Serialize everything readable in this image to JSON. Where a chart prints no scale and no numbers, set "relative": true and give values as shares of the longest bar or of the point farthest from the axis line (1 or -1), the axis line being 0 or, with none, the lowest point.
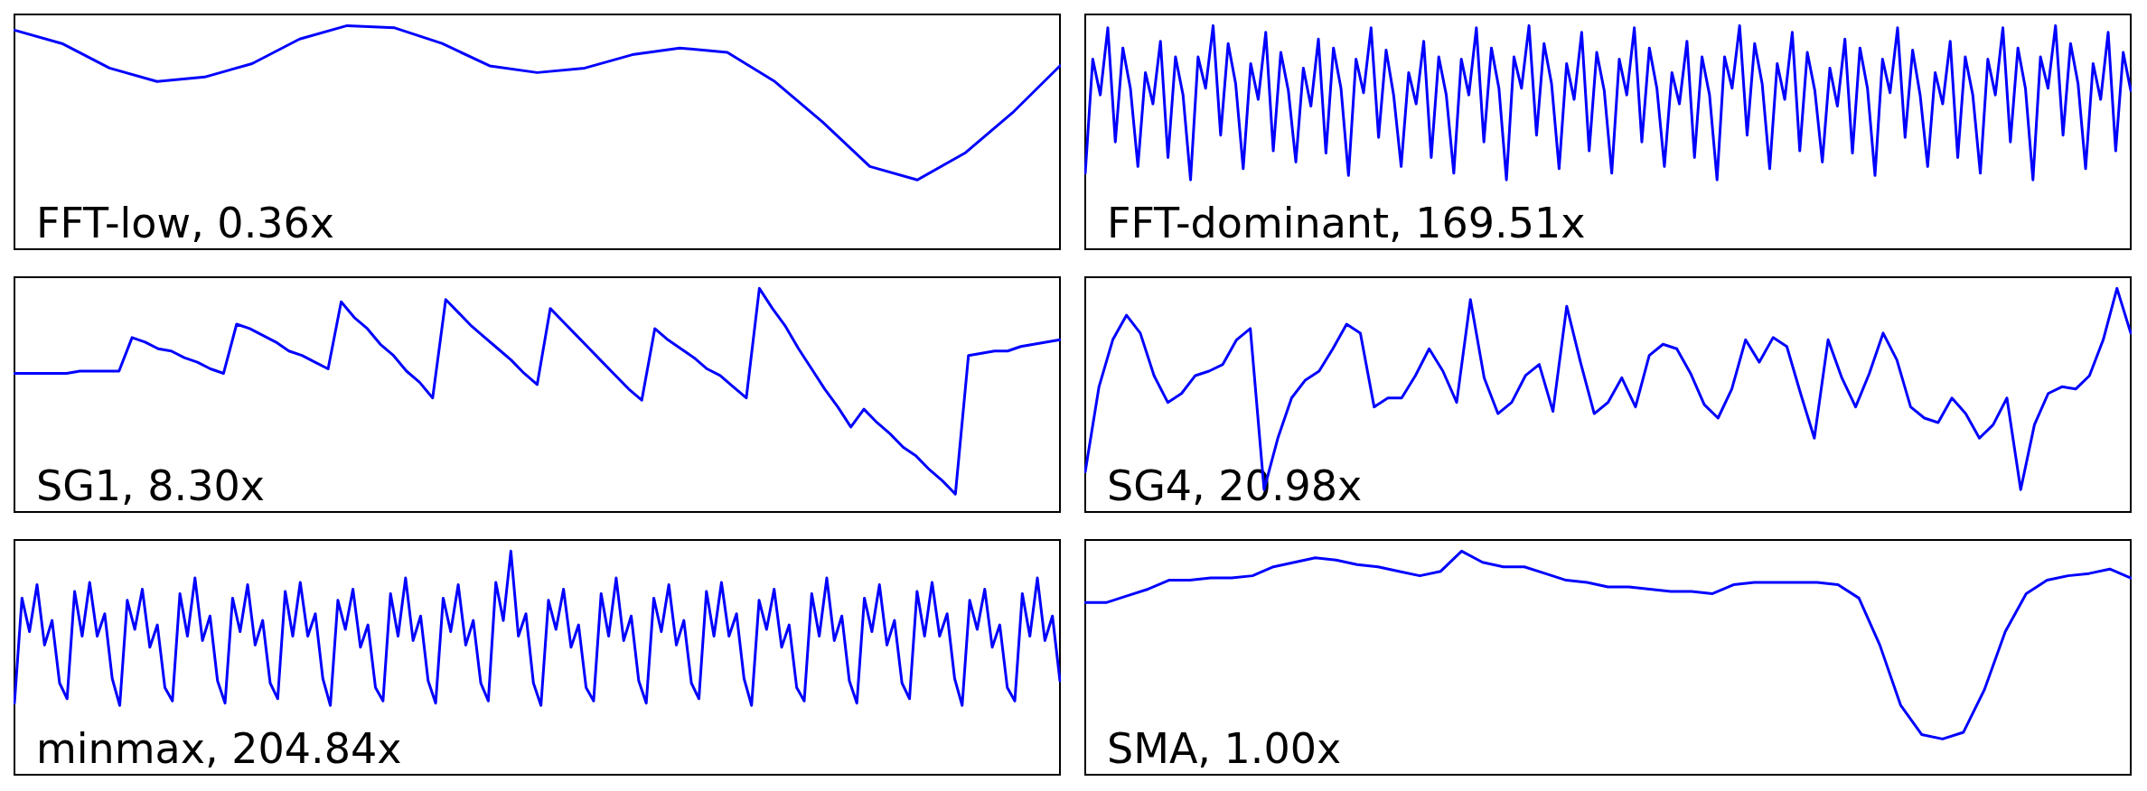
{
  "chart_data": [
    {
      "type": "line",
      "title": "FFT-low, 0.36x",
      "relative": true,
      "color": "#0000ff",
      "categories": [
        null,
        null,
        null,
        null,
        null,
        null,
        null,
        null,
        null,
        null,
        null,
        null,
        null,
        null,
        null,
        null,
        null,
        null,
        null,
        null,
        null,
        null,
        null
      ],
      "values": [
        0.98,
        0.92,
        0.81,
        0.75,
        0.77,
        0.83,
        0.94,
        1,
        0.99,
        0.92,
        0.82,
        0.79,
        0.81,
        0.87,
        0.9,
        0.88,
        0.75,
        0.57,
        0.37,
        0.31,
        0.43,
        0.61,
        0.82
      ]
    },
    {
      "type": "line",
      "title": "FFT-dominant, 169.51x",
      "relative": true,
      "color": "#0000ff",
      "categories": [
        null,
        null,
        null,
        null,
        null,
        null,
        null,
        null,
        null,
        null,
        null,
        null,
        null,
        null,
        null,
        null,
        null,
        null,
        null,
        null,
        null,
        null,
        null,
        null,
        null,
        null,
        null,
        null,
        null,
        null,
        null,
        null,
        null,
        null,
        null,
        null,
        null,
        null,
        null,
        null,
        null,
        null,
        null,
        null,
        null,
        null,
        null,
        null,
        null,
        null,
        null,
        null,
        null,
        null,
        null,
        null,
        null,
        null,
        null,
        null,
        null,
        null,
        null,
        null,
        null,
        null,
        null,
        null,
        null,
        null,
        null,
        null,
        null,
        null,
        null,
        null,
        null,
        null,
        null,
        null,
        null,
        null,
        null,
        null,
        null,
        null,
        null,
        null,
        null,
        null,
        null,
        null,
        null,
        null,
        null,
        null,
        null,
        null,
        null,
        null,
        null,
        null,
        null,
        null,
        null,
        null,
        null,
        null,
        null,
        null,
        null,
        null,
        null,
        null,
        null,
        null,
        null,
        null,
        null,
        null,
        null,
        null,
        null,
        null,
        null,
        null,
        null,
        null,
        null,
        null,
        null,
        null,
        null,
        null,
        null,
        null,
        null,
        null,
        null,
        null
      ],
      "values": [
        0.34,
        0.85,
        0.69,
        0.99,
        0.48,
        0.9,
        0.72,
        0.37,
        0.79,
        0.65,
        0.93,
        0.41,
        0.86,
        0.69,
        0.31,
        0.86,
        0.72,
        1,
        0.51,
        0.92,
        0.74,
        0.36,
        0.83,
        0.67,
        0.97,
        0.44,
        0.88,
        0.71,
        0.39,
        0.81,
        0.64,
        0.94,
        0.43,
        0.9,
        0.72,
        0.33,
        0.85,
        0.7,
        0.99,
        0.5,
        0.89,
        0.69,
        0.37,
        0.79,
        0.65,
        0.93,
        0.41,
        0.86,
        0.69,
        0.34,
        0.85,
        0.69,
        0.99,
        0.48,
        0.9,
        0.72,
        0.31,
        0.86,
        0.72,
        1,
        0.51,
        0.92,
        0.74,
        0.36,
        0.83,
        0.67,
        0.97,
        0.44,
        0.88,
        0.71,
        0.34,
        0.85,
        0.69,
        0.99,
        0.48,
        0.9,
        0.72,
        0.37,
        0.79,
        0.65,
        0.93,
        0.41,
        0.86,
        0.69,
        0.31,
        0.86,
        0.72,
        1,
        0.51,
        0.92,
        0.74,
        0.36,
        0.83,
        0.67,
        0.97,
        0.44,
        0.88,
        0.71,
        0.39,
        0.81,
        0.64,
        0.94,
        0.43,
        0.9,
        0.72,
        0.33,
        0.85,
        0.7,
        0.99,
        0.5,
        0.89,
        0.69,
        0.37,
        0.79,
        0.65,
        0.93,
        0.41,
        0.86,
        0.69,
        0.34,
        0.85,
        0.69,
        0.99,
        0.48,
        0.9,
        0.72,
        0.31,
        0.86,
        0.72,
        1,
        0.51,
        0.92,
        0.74,
        0.36,
        0.83,
        0.67,
        0.97,
        0.44,
        0.88,
        0.71
      ]
    },
    {
      "type": "line",
      "title": "SG1, 8.30x",
      "relative": true,
      "color": "#0000ff",
      "categories": [
        null,
        null,
        null,
        null,
        null,
        null,
        null,
        null,
        null,
        null,
        null,
        null,
        null,
        null,
        null,
        null,
        null,
        null,
        null,
        null,
        null,
        null,
        null,
        null,
        null,
        null,
        null,
        null,
        null,
        null,
        null,
        null,
        null,
        null,
        null,
        null,
        null,
        null,
        null,
        null,
        null,
        null,
        null,
        null,
        null,
        null,
        null,
        null,
        null,
        null,
        null,
        null,
        null,
        null,
        null,
        null,
        null,
        null,
        null,
        null,
        null,
        null,
        null,
        null,
        null,
        null,
        null,
        null,
        null,
        null,
        null,
        null,
        null,
        null,
        null,
        null,
        null,
        null,
        null,
        null,
        null
      ],
      "values": [
        0.62,
        0.62,
        0.62,
        0.62,
        0.62,
        0.63,
        0.63,
        0.63,
        0.63,
        0.78,
        0.76,
        0.73,
        0.72,
        0.69,
        0.67,
        0.64,
        0.62,
        0.84,
        0.82,
        0.79,
        0.76,
        0.72,
        0.7,
        0.67,
        0.64,
        0.94,
        0.87,
        0.82,
        0.75,
        0.7,
        0.63,
        0.58,
        0.51,
        0.95,
        0.89,
        0.83,
        0.78,
        0.73,
        0.68,
        0.62,
        0.57,
        0.91,
        0.85,
        0.79,
        0.73,
        0.67,
        0.61,
        0.55,
        0.5,
        0.82,
        0.77,
        0.73,
        0.69,
        0.64,
        0.61,
        0.56,
        0.51,
        1,
        0.91,
        0.83,
        0.73,
        0.64,
        0.55,
        0.47,
        0.38,
        0.46,
        0.4,
        0.35,
        0.29,
        0.25,
        0.19,
        0.14,
        0.08,
        0.7,
        0.71,
        0.72,
        0.72,
        0.74,
        0.75,
        0.76,
        0.77
      ]
    },
    {
      "type": "line",
      "title": "SG4, 20.98x",
      "relative": true,
      "color": "#0000ff",
      "categories": [
        null,
        null,
        null,
        null,
        null,
        null,
        null,
        null,
        null,
        null,
        null,
        null,
        null,
        null,
        null,
        null,
        null,
        null,
        null,
        null,
        null,
        null,
        null,
        null,
        null,
        null,
        null,
        null,
        null,
        null,
        null,
        null,
        null,
        null,
        null,
        null,
        null,
        null,
        null,
        null,
        null,
        null,
        null,
        null,
        null,
        null,
        null,
        null,
        null,
        null,
        null,
        null,
        null,
        null,
        null,
        null,
        null,
        null,
        null,
        null,
        null,
        null,
        null,
        null,
        null,
        null,
        null,
        null,
        null,
        null,
        null,
        null,
        null,
        null,
        null,
        null,
        null
      ],
      "values": [
        0.18,
        0.56,
        0.77,
        0.88,
        0.8,
        0.61,
        0.49,
        0.53,
        0.61,
        0.63,
        0.66,
        0.77,
        0.82,
        0.1,
        0.33,
        0.51,
        0.59,
        0.63,
        0.73,
        0.84,
        0.8,
        0.47,
        0.51,
        0.51,
        0.61,
        0.73,
        0.63,
        0.49,
        0.95,
        0.6,
        0.44,
        0.49,
        0.61,
        0.66,
        0.45,
        0.92,
        0.67,
        0.44,
        0.49,
        0.6,
        0.47,
        0.7,
        0.75,
        0.73,
        0.62,
        0.48,
        0.42,
        0.55,
        0.77,
        0.67,
        0.78,
        0.74,
        0.53,
        0.33,
        0.77,
        0.6,
        0.47,
        0.62,
        0.8,
        0.68,
        0.47,
        0.42,
        0.4,
        0.51,
        0.44,
        0.33,
        0.39,
        0.51,
        0.1,
        0.39,
        0.53,
        0.56,
        0.55,
        0.61,
        0.77,
        1,
        0.8
      ]
    },
    {
      "type": "line",
      "title": "minmax, 204.84x",
      "relative": true,
      "color": "#0000ff",
      "categories": [
        null,
        null,
        null,
        null,
        null,
        null,
        null,
        null,
        null,
        null,
        null,
        null,
        null,
        null,
        null,
        null,
        null,
        null,
        null,
        null,
        null,
        null,
        null,
        null,
        null,
        null,
        null,
        null,
        null,
        null,
        null,
        null,
        null,
        null,
        null,
        null,
        null,
        null,
        null,
        null,
        null,
        null,
        null,
        null,
        null,
        null,
        null,
        null,
        null,
        null,
        null,
        null,
        null,
        null,
        null,
        null,
        null,
        null,
        null,
        null,
        null,
        null,
        null,
        null,
        null,
        null,
        null,
        null,
        null,
        null,
        null,
        null,
        null,
        null,
        null,
        null,
        null,
        null,
        null,
        null,
        null,
        null,
        null,
        null,
        null,
        null,
        null,
        null,
        null,
        null,
        null,
        null,
        null,
        null,
        null,
        null,
        null,
        null,
        null,
        null,
        null,
        null,
        null,
        null,
        null,
        null,
        null,
        null,
        null,
        null,
        null,
        null,
        null,
        null,
        null,
        null,
        null,
        null,
        null,
        null,
        null,
        null,
        null,
        null,
        null,
        null,
        null,
        null,
        null,
        null,
        null,
        null,
        null,
        null,
        null,
        null,
        null,
        null,
        null,
        null
      ],
      "values": [
        0.32,
        0.79,
        0.64,
        0.85,
        0.58,
        0.69,
        0.41,
        0.34,
        0.82,
        0.62,
        0.86,
        0.62,
        0.72,
        0.43,
        0.31,
        0.78,
        0.65,
        0.83,
        0.57,
        0.67,
        0.39,
        0.33,
        0.81,
        0.62,
        0.88,
        0.6,
        0.71,
        0.42,
        0.32,
        0.79,
        0.64,
        0.85,
        0.58,
        0.69,
        0.41,
        0.34,
        0.82,
        0.62,
        0.86,
        0.62,
        0.72,
        0.43,
        0.31,
        0.78,
        0.65,
        0.83,
        0.57,
        0.67,
        0.39,
        0.33,
        0.81,
        0.62,
        0.88,
        0.6,
        0.71,
        0.42,
        0.32,
        0.79,
        0.64,
        0.85,
        0.58,
        0.69,
        0.41,
        0.33,
        0.86,
        0.69,
        1,
        0.62,
        0.72,
        0.41,
        0.31,
        0.78,
        0.65,
        0.83,
        0.57,
        0.67,
        0.39,
        0.33,
        0.81,
        0.62,
        0.88,
        0.6,
        0.71,
        0.42,
        0.32,
        0.79,
        0.64,
        0.85,
        0.58,
        0.69,
        0.41,
        0.34,
        0.82,
        0.62,
        0.86,
        0.62,
        0.72,
        0.43,
        0.31,
        0.78,
        0.65,
        0.83,
        0.57,
        0.67,
        0.39,
        0.33,
        0.81,
        0.62,
        0.88,
        0.6,
        0.71,
        0.42,
        0.32,
        0.79,
        0.64,
        0.85,
        0.58,
        0.69,
        0.41,
        0.34,
        0.82,
        0.62,
        0.86,
        0.62,
        0.72,
        0.43,
        0.31,
        0.78,
        0.65,
        0.83,
        0.57,
        0.67,
        0.39,
        0.33,
        0.81,
        0.62,
        0.88,
        0.6,
        0.71,
        0.42
      ]
    },
    {
      "type": "line",
      "title": "SMA, 1.00x",
      "relative": true,
      "color": "#0000ff",
      "categories": [
        null,
        null,
        null,
        null,
        null,
        null,
        null,
        null,
        null,
        null,
        null,
        null,
        null,
        null,
        null,
        null,
        null,
        null,
        null,
        null,
        null,
        null,
        null,
        null,
        null,
        null,
        null,
        null,
        null,
        null,
        null,
        null,
        null,
        null,
        null,
        null,
        null,
        null,
        null,
        null,
        null,
        null,
        null,
        null,
        null,
        null,
        null,
        null,
        null,
        null,
        null
      ],
      "values": [
        0.77,
        0.77,
        0.8,
        0.83,
        0.87,
        0.87,
        0.88,
        0.88,
        0.89,
        0.93,
        0.95,
        0.97,
        0.96,
        0.94,
        0.93,
        0.91,
        0.89,
        0.91,
        1,
        0.95,
        0.93,
        0.93,
        0.9,
        0.87,
        0.86,
        0.84,
        0.84,
        0.83,
        0.82,
        0.82,
        0.81,
        0.85,
        0.86,
        0.86,
        0.86,
        0.86,
        0.85,
        0.79,
        0.58,
        0.31,
        0.18,
        0.16,
        0.19,
        0.38,
        0.64,
        0.81,
        0.87,
        0.89,
        0.9,
        0.92,
        0.88
      ]
    }
  ]
}
